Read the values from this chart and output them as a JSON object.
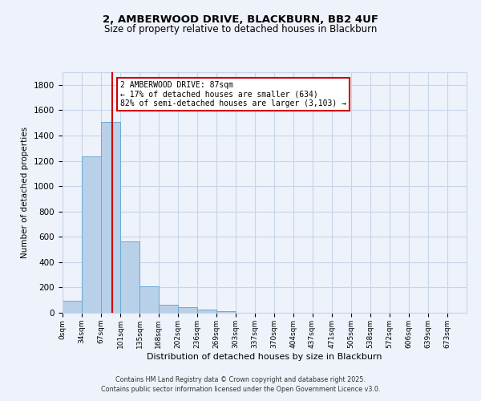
{
  "title_line1": "2, AMBERWOOD DRIVE, BLACKBURN, BB2 4UF",
  "title_line2": "Size of property relative to detached houses in Blackburn",
  "xlabel": "Distribution of detached houses by size in Blackburn",
  "ylabel": "Number of detached properties",
  "bin_labels": [
    "0sqm",
    "34sqm",
    "67sqm",
    "101sqm",
    "135sqm",
    "168sqm",
    "202sqm",
    "236sqm",
    "269sqm",
    "303sqm",
    "337sqm",
    "370sqm",
    "404sqm",
    "437sqm",
    "471sqm",
    "505sqm",
    "538sqm",
    "572sqm",
    "606sqm",
    "639sqm",
    "673sqm"
  ],
  "bar_values": [
    95,
    1235,
    1510,
    565,
    210,
    65,
    45,
    25,
    15,
    0,
    0,
    0,
    0,
    0,
    0,
    0,
    0,
    0,
    0,
    0
  ],
  "bar_color": "#b8d0e8",
  "bar_edge_color": "#6aaad4",
  "property_value": 87,
  "annotation_title": "2 AMBERWOOD DRIVE: 87sqm",
  "annotation_line2": "← 17% of detached houses are smaller (634)",
  "annotation_line3": "82% of semi-detached houses are larger (3,103) →",
  "annotation_box_edge": "#cc0000",
  "vline_color": "#cc0000",
  "ylim": [
    0,
    1900
  ],
  "yticks": [
    0,
    200,
    400,
    600,
    800,
    1000,
    1200,
    1400,
    1600,
    1800
  ],
  "grid_color": "#c8d4e8",
  "bg_color": "#eef2fb",
  "footnote1": "Contains HM Land Registry data © Crown copyright and database right 2025.",
  "footnote2": "Contains public sector information licensed under the Open Government Licence v3.0.",
  "bin_edges": [
    0,
    34,
    67,
    101,
    135,
    168,
    202,
    236,
    269,
    303,
    337,
    370,
    404,
    437,
    471,
    505,
    538,
    572,
    606,
    639,
    673,
    707
  ]
}
